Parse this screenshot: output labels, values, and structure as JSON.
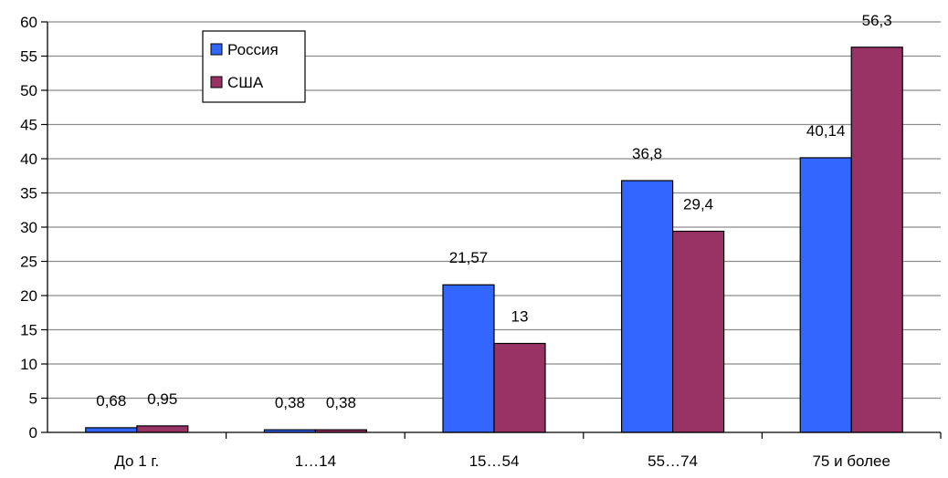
{
  "chart_data": {
    "type": "bar",
    "categories": [
      "До 1 г.",
      "1…14",
      "15…54",
      "55…74",
      "75 и более"
    ],
    "series": [
      {
        "name": "Россия",
        "values": [
          0.68,
          0.38,
          21.57,
          36.8,
          40.14
        ],
        "labels": [
          "0,68",
          "0,38",
          "21,57",
          "36,8",
          "40,14"
        ],
        "color": "#3366ff"
      },
      {
        "name": "США",
        "values": [
          0.95,
          0.38,
          13,
          29.4,
          56.3
        ],
        "labels": [
          "0,95",
          "0,38",
          "13",
          "29,4",
          "56,3"
        ],
        "color": "#993366"
      }
    ],
    "y_ticks": [
      "0",
      "5",
      "10",
      "15",
      "20",
      "25",
      "30",
      "35",
      "40",
      "45",
      "50",
      "55",
      "60"
    ],
    "ylim": [
      0,
      60
    ],
    "y_step": 5,
    "grid": true,
    "legend_position": "top-left",
    "title": "",
    "xlabel": "",
    "ylabel": ""
  }
}
